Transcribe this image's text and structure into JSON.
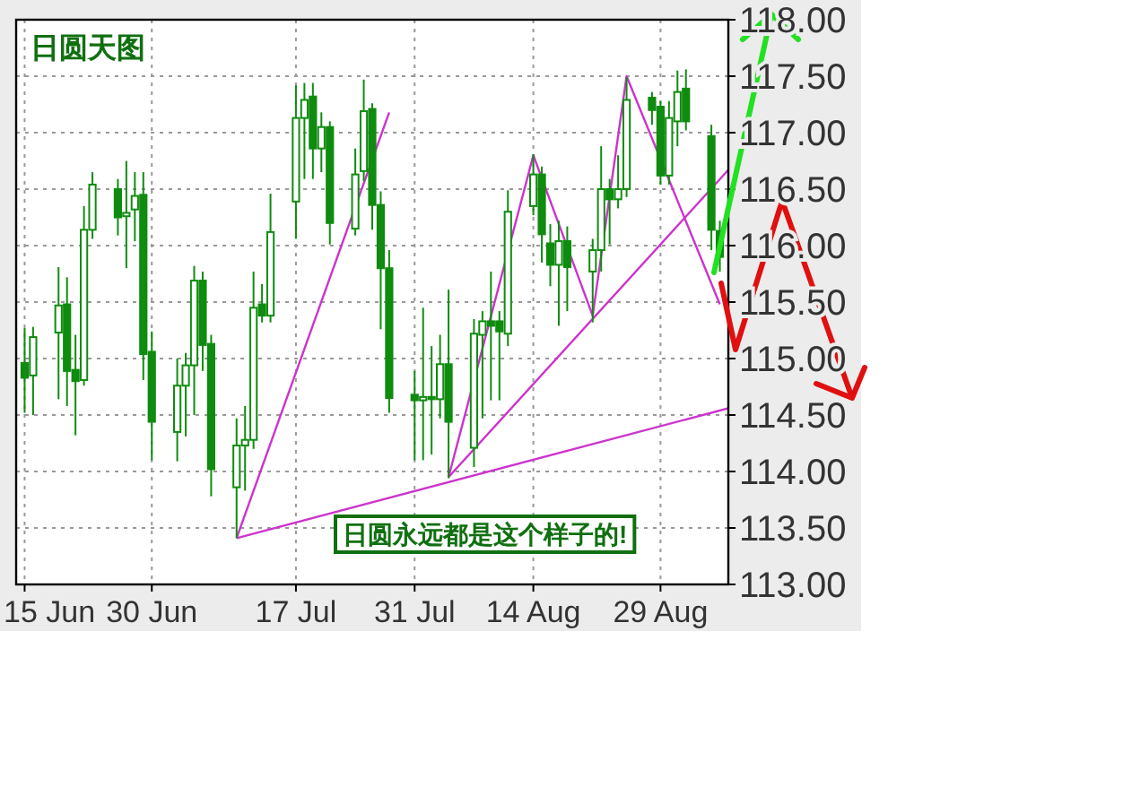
{
  "chart_data": {
    "type": "candlestick",
    "title": "日圆天图",
    "annotations": [
      "日圆永远都是这个样子的!"
    ],
    "xlim": [
      "--06-14",
      "--09-06"
    ],
    "ylim": [
      113,
      118
    ],
    "xticks": [
      {
        "value": "--06-15",
        "label": "15 Jun"
      },
      {
        "value": "--06-30",
        "label": "30 Jun"
      },
      {
        "value": "--07-17",
        "label": "17 Jul"
      },
      {
        "value": "--07-31",
        "label": "31 Jul"
      },
      {
        "value": "--08-14",
        "label": "14 Aug"
      },
      {
        "value": "--08-29",
        "label": "29 Aug"
      }
    ],
    "yticks": [
      {
        "value": 113,
        "label": "113.00"
      },
      {
        "value": 113.5,
        "label": "113.50"
      },
      {
        "value": 114,
        "label": "114.00"
      },
      {
        "value": 114.5,
        "label": "114.50"
      },
      {
        "value": 115,
        "label": "115.00"
      },
      {
        "value": 115.5,
        "label": "115.50"
      },
      {
        "value": 116,
        "label": "116.00"
      },
      {
        "value": 116.5,
        "label": "116.50"
      },
      {
        "value": 117,
        "label": "117.00"
      },
      {
        "value": 117.5,
        "label": "117.50"
      },
      {
        "value": 118,
        "label": "118.00"
      }
    ],
    "grid": true,
    "series": [
      {
        "type": "candlestick",
        "color": "#0f8c0f",
        "x": [
          "--06-15",
          "--06-16",
          "--06-19",
          "--06-20",
          "--06-21",
          "--06-22",
          "--06-23",
          "--06-26",
          "--06-27",
          "--06-28",
          "--06-29",
          "--06-30",
          "--07-03",
          "--07-04",
          "--07-05",
          "--07-06",
          "--07-07",
          "--07-10",
          "--07-11",
          "--07-12",
          "--07-13",
          "--07-14",
          "--07-17",
          "--07-18",
          "--07-19",
          "--07-20",
          "--07-21",
          "--07-24",
          "--07-25",
          "--07-26",
          "--07-27",
          "--07-28",
          "--07-31",
          "--08-01",
          "--08-02",
          "--08-03",
          "--08-04",
          "--08-07",
          "--08-08",
          "--08-09",
          "--08-10",
          "--08-11",
          "--08-14",
          "--08-15",
          "--08-16",
          "--08-17",
          "--08-18",
          "--08-21",
          "--08-22",
          "--08-23",
          "--08-24",
          "--08-25",
          "--08-28",
          "--08-29",
          "--08-30",
          "--08-31",
          "--09-01",
          "--09-04",
          "--09-05"
        ],
        "ohlc": [
          [
            114.96,
            115.27,
            114.52,
            114.83
          ],
          [
            114.85,
            115.28,
            114.5,
            115.19
          ],
          [
            115.23,
            115.81,
            114.64,
            115.47
          ],
          [
            115.48,
            115.72,
            114.58,
            114.89
          ],
          [
            114.9,
            115.21,
            114.32,
            114.8
          ],
          [
            114.81,
            116.35,
            114.76,
            116.14
          ],
          [
            116.14,
            116.65,
            116.06,
            116.54
          ],
          [
            116.5,
            116.59,
            116.09,
            116.25
          ],
          [
            116.26,
            116.75,
            115.8,
            116.29
          ],
          [
            116.32,
            116.65,
            116.04,
            116.44
          ],
          [
            116.45,
            116.65,
            114.81,
            115.04
          ],
          [
            115.06,
            115.24,
            114.1,
            114.44
          ],
          [
            114.35,
            115.0,
            114.09,
            114.76
          ],
          [
            114.76,
            115.05,
            114.31,
            114.94
          ],
          [
            114.94,
            115.82,
            114.5,
            115.69
          ],
          [
            115.69,
            115.77,
            114.89,
            115.12
          ],
          [
            115.13,
            115.21,
            113.78,
            114.02
          ],
          [
            113.86,
            114.47,
            113.41,
            114.23
          ],
          [
            114.23,
            114.58,
            113.83,
            114.28
          ],
          [
            114.28,
            115.77,
            114.2,
            115.45
          ],
          [
            115.48,
            115.66,
            115.32,
            115.38
          ],
          [
            115.38,
            116.46,
            115.32,
            116.12
          ],
          [
            116.39,
            117.42,
            116.06,
            117.13
          ],
          [
            117.13,
            117.44,
            116.59,
            117.29
          ],
          [
            117.32,
            117.44,
            116.59,
            116.86
          ],
          [
            116.86,
            117.18,
            116.65,
            117.05
          ],
          [
            117.05,
            117.1,
            116.01,
            116.2
          ],
          [
            116.15,
            116.86,
            116.09,
            116.63
          ],
          [
            116.66,
            117.47,
            116.57,
            117.19
          ],
          [
            117.21,
            117.26,
            116.14,
            116.36
          ],
          [
            116.36,
            116.48,
            115.26,
            115.8
          ],
          [
            115.8,
            115.96,
            114.52,
            114.65
          ],
          [
            114.68,
            114.89,
            114.1,
            114.63
          ],
          [
            114.63,
            115.45,
            114.1,
            114.66
          ],
          [
            114.66,
            115.11,
            114.15,
            114.64
          ],
          [
            114.64,
            115.21,
            114.47,
            114.95
          ],
          [
            114.95,
            115.61,
            113.94,
            114.44
          ],
          [
            114.21,
            115.35,
            114.04,
            115.22
          ],
          [
            115.21,
            115.42,
            114.47,
            115.33
          ],
          [
            115.33,
            115.77,
            114.63,
            115.29
          ],
          [
            115.33,
            115.42,
            114.63,
            115.24
          ],
          [
            115.22,
            116.49,
            115.11,
            116.3
          ],
          [
            116.35,
            116.81,
            116.27,
            116.63
          ],
          [
            116.63,
            116.7,
            115.85,
            116.1
          ],
          [
            116.02,
            116.19,
            115.64,
            115.83
          ],
          [
            115.83,
            116.22,
            115.29,
            116.04
          ],
          [
            116.04,
            116.17,
            115.42,
            115.81
          ],
          [
            115.77,
            116.06,
            115.32,
            115.96
          ],
          [
            115.96,
            116.88,
            115.77,
            116.5
          ],
          [
            116.5,
            116.59,
            116.01,
            116.41
          ],
          [
            116.41,
            116.8,
            116.33,
            116.5
          ],
          [
            116.5,
            117.49,
            116.43,
            117.29
          ],
          [
            117.31,
            117.36,
            117.07,
            117.2
          ],
          [
            117.23,
            117.28,
            116.54,
            116.62
          ],
          [
            116.62,
            117.28,
            116.54,
            117.13
          ],
          [
            117.1,
            117.55,
            116.88,
            117.36
          ],
          [
            117.39,
            117.56,
            117.02,
            117.1
          ],
          [
            116.97,
            117.07,
            115.96,
            116.14
          ],
          [
            116.13,
            116.22,
            115.77,
            115.9
          ]
        ]
      },
      {
        "type": "line",
        "color": "#cc33cc",
        "x": [
          "--07-10",
          "--09-06"
        ],
        "values": [
          113.41,
          114.56
        ]
      },
      {
        "type": "line",
        "color": "#cc33cc",
        "x": [
          "--07-10",
          "--07-28"
        ],
        "values": [
          113.41,
          117.18
        ]
      },
      {
        "type": "line",
        "color": "#cc33cc",
        "x": [
          "--08-04",
          "--09-06"
        ],
        "values": [
          113.95,
          116.67
        ]
      },
      {
        "type": "line",
        "color": "#cc33cc",
        "x": [
          "--08-04",
          "--08-14",
          "--08-21",
          "--08-25",
          "--09-05"
        ],
        "values": [
          113.95,
          116.8,
          115.38,
          117.5,
          115.48
        ]
      }
    ]
  }
}
